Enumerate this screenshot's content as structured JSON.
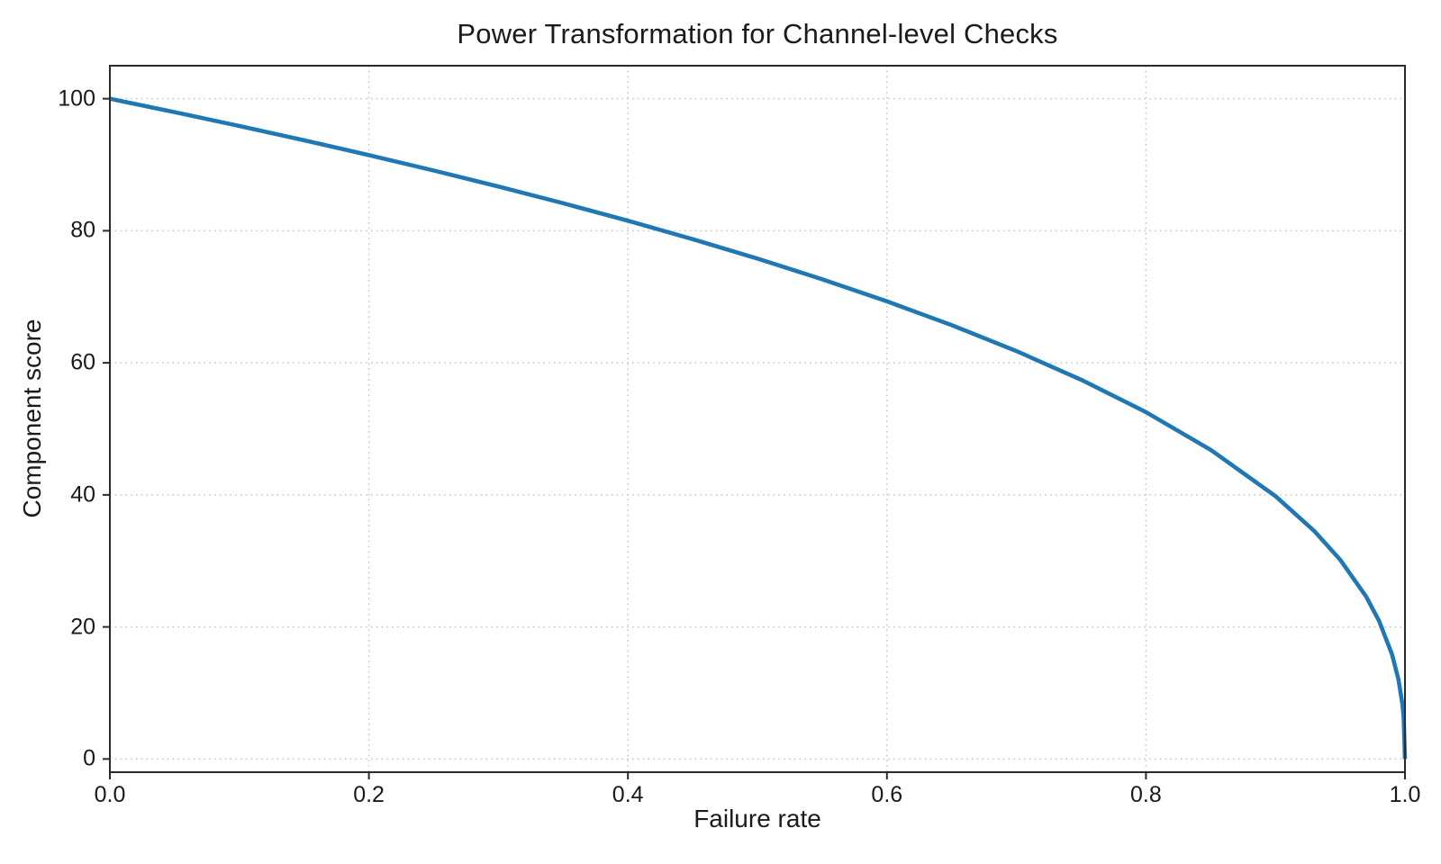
{
  "figure": {
    "background": "#ffffff",
    "text_color": "#1b1b1b",
    "grid_color": "#c4c4c4",
    "spine_color": "#2a2a2a"
  },
  "chart_data": {
    "type": "line",
    "title": "Power Transformation for Channel-level Checks",
    "xlabel": "Failure rate",
    "ylabel": "Component score",
    "xlim": [
      0.0,
      1.0
    ],
    "ylim": [
      -2,
      105
    ],
    "grid": true,
    "legend": false,
    "x_tick_values": [
      0.0,
      0.2,
      0.4,
      0.6,
      0.8,
      1.0
    ],
    "x_tick_labels": [
      "0.0",
      "0.2",
      "0.4",
      "0.6",
      "0.8",
      "1.0"
    ],
    "y_tick_values": [
      0,
      20,
      40,
      60,
      80,
      100
    ],
    "y_tick_labels": [
      "0",
      "20",
      "40",
      "60",
      "80",
      "100"
    ],
    "series": [
      {
        "name": "component-score-curve",
        "color": "#1f77b4",
        "line_width": 4.6,
        "formula": "score = 100 * (1 - failure_rate)^0.4",
        "x": [
          0,
          0.05,
          0.1,
          0.15,
          0.2,
          0.25,
          0.3,
          0.35,
          0.4,
          0.45,
          0.5,
          0.55,
          0.6,
          0.65,
          0.7,
          0.75,
          0.8,
          0.85,
          0.9,
          0.93,
          0.95,
          0.97,
          0.98,
          0.99,
          0.995,
          0.998,
          0.999,
          1.0
        ],
        "y": [
          100,
          97.97,
          95.87,
          93.71,
          91.46,
          89.13,
          86.7,
          84.17,
          81.52,
          78.73,
          75.79,
          72.66,
          69.31,
          65.71,
          61.78,
          57.43,
          52.53,
          46.82,
          39.81,
          34.52,
          30.17,
          24.6,
          20.91,
          15.85,
          12.01,
          8.33,
          6.31,
          0
        ]
      }
    ]
  }
}
